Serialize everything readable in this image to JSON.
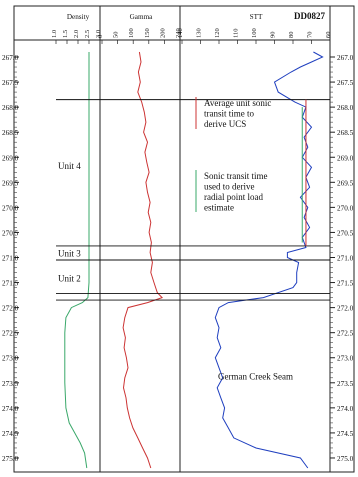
{
  "chart_data": {
    "type": "line",
    "title": "DD0827",
    "y_axis": {
      "label": "",
      "min": 266.9,
      "max": 275.2,
      "ticks": [
        267.0,
        267.5,
        268.0,
        268.5,
        269.0,
        269.5,
        270.0,
        270.5,
        271.0,
        271.5,
        272.0,
        272.5,
        273.0,
        273.5,
        274.0,
        274.5,
        275.0
      ],
      "tick_labels": [
        "267.0",
        "267.5",
        "268.0",
        "268.5",
        "269.0",
        "269.5",
        "270.0",
        "270.5",
        "271.0",
        "271.5",
        "272.0",
        "272.5",
        "273.0",
        "273.5",
        "274.0",
        "274.5",
        "275.0"
      ]
    },
    "tracks": [
      {
        "name": "Density",
        "min": 1.0,
        "max": 3.0,
        "tick_labels": [
          "1.0",
          "1.5",
          "2.0",
          "2.5",
          "3.0"
        ],
        "color": "#3aa86a",
        "depth": [
          266.9,
          267.5,
          268.0,
          269.0,
          270.0,
          271.0,
          271.5,
          271.8,
          271.9,
          272.0,
          272.2,
          272.5,
          273.0,
          273.5,
          274.0,
          274.3,
          274.5,
          274.7,
          274.9,
          275.2
        ],
        "values": [
          2.5,
          2.5,
          2.5,
          2.5,
          2.5,
          2.5,
          2.5,
          2.45,
          2.2,
          1.7,
          1.45,
          1.4,
          1.4,
          1.4,
          1.45,
          1.6,
          1.85,
          2.1,
          2.3,
          2.4
        ]
      },
      {
        "name": "Gamma",
        "min": 0,
        "max": 240,
        "tick_labels": [
          "0",
          "50",
          "100",
          "150",
          "200",
          "240"
        ],
        "color": "#cc3333",
        "depth": [
          266.9,
          267.1,
          267.3,
          267.5,
          267.7,
          267.9,
          268.1,
          268.3,
          268.5,
          268.7,
          268.9,
          269.1,
          269.3,
          269.5,
          269.7,
          269.9,
          270.1,
          270.3,
          270.5,
          270.7,
          270.9,
          271.1,
          271.3,
          271.5,
          271.7,
          271.8,
          271.9,
          272.0,
          272.2,
          272.4,
          272.6,
          272.8,
          273.0,
          273.2,
          273.4,
          273.6,
          273.8,
          274.0,
          274.2,
          274.4,
          274.6,
          274.8,
          275.0,
          275.2
        ],
        "values": [
          115,
          120,
          112,
          118,
          110,
          122,
          130,
          135,
          128,
          140,
          132,
          138,
          145,
          135,
          140,
          148,
          142,
          150,
          145,
          152,
          148,
          155,
          150,
          160,
          170,
          185,
          140,
          80,
          70,
          65,
          72,
          68,
          75,
          80,
          70,
          66,
          74,
          78,
          85,
          95,
          110,
          125,
          140,
          150
        ]
      },
      {
        "name": "STT",
        "min": 60,
        "max": 140,
        "tick_labels": [
          "140",
          "130",
          "120",
          "110",
          "100",
          "90",
          "80",
          "70",
          "60"
        ],
        "reversed": true,
        "color": "#1f3fbf",
        "depth": [
          266.9,
          267.0,
          267.1,
          267.2,
          267.3,
          267.5,
          267.7,
          267.9,
          268.0,
          268.2,
          268.4,
          268.6,
          268.8,
          269.0,
          269.2,
          269.4,
          269.6,
          269.8,
          270.0,
          270.2,
          270.4,
          270.6,
          270.8,
          270.9,
          271.0,
          271.1,
          271.3,
          271.5,
          271.6,
          271.8,
          271.9,
          272.0,
          272.2,
          272.4,
          272.6,
          272.8,
          273.0,
          273.2,
          273.4,
          273.6,
          273.8,
          274.0,
          274.2,
          274.4,
          274.6,
          274.8,
          275.0,
          275.2
        ],
        "values": [
          69,
          64,
          70,
          76,
          81,
          90,
          88,
          79,
          73,
          75,
          70,
          74,
          72,
          75,
          70,
          73,
          71,
          76,
          72,
          74,
          71,
          75,
          73,
          83,
          83,
          77,
          78,
          78,
          80,
          96,
          115,
          120,
          122,
          120,
          121,
          119,
          122,
          120,
          118,
          121,
          119,
          117,
          118,
          115,
          112,
          100,
          76,
          72
        ]
      }
    ],
    "reference_lines": [
      {
        "depth": 267.85,
        "label": ""
      },
      {
        "depth": 270.77,
        "label": ""
      },
      {
        "depth": 271.05,
        "label": ""
      },
      {
        "depth": 271.72,
        "label": ""
      },
      {
        "depth": 271.85,
        "label": ""
      }
    ],
    "reference_series": [
      {
        "name": "Average unit sonic transit time to derive UCS",
        "color": "#cc3333",
        "depth": [
          267.85,
          270.77
        ],
        "stt_value": 73
      },
      {
        "name": "Sonic transit time used to derive radial point load estimate",
        "color": "#3aa86a",
        "depth": [
          268.0,
          270.7
        ],
        "stt_value": 75
      }
    ],
    "annotations": [
      {
        "text": "Unit 4",
        "depth": 269.15
      },
      {
        "text": "Unit 3",
        "depth": 270.9
      },
      {
        "text": "Unit 2",
        "depth": 271.4
      },
      {
        "text": "German Creek Seam",
        "depth": 273.35
      }
    ],
    "legend": [
      {
        "lines": [
          "Average unit sonic",
          "transit time to",
          "derive UCS"
        ],
        "color": "#cc3333"
      },
      {
        "lines": [
          "Sonic transit time",
          "used to derive",
          "radial point load",
          "estimate"
        ],
        "color": "#3aa86a"
      }
    ],
    "grid": false
  }
}
